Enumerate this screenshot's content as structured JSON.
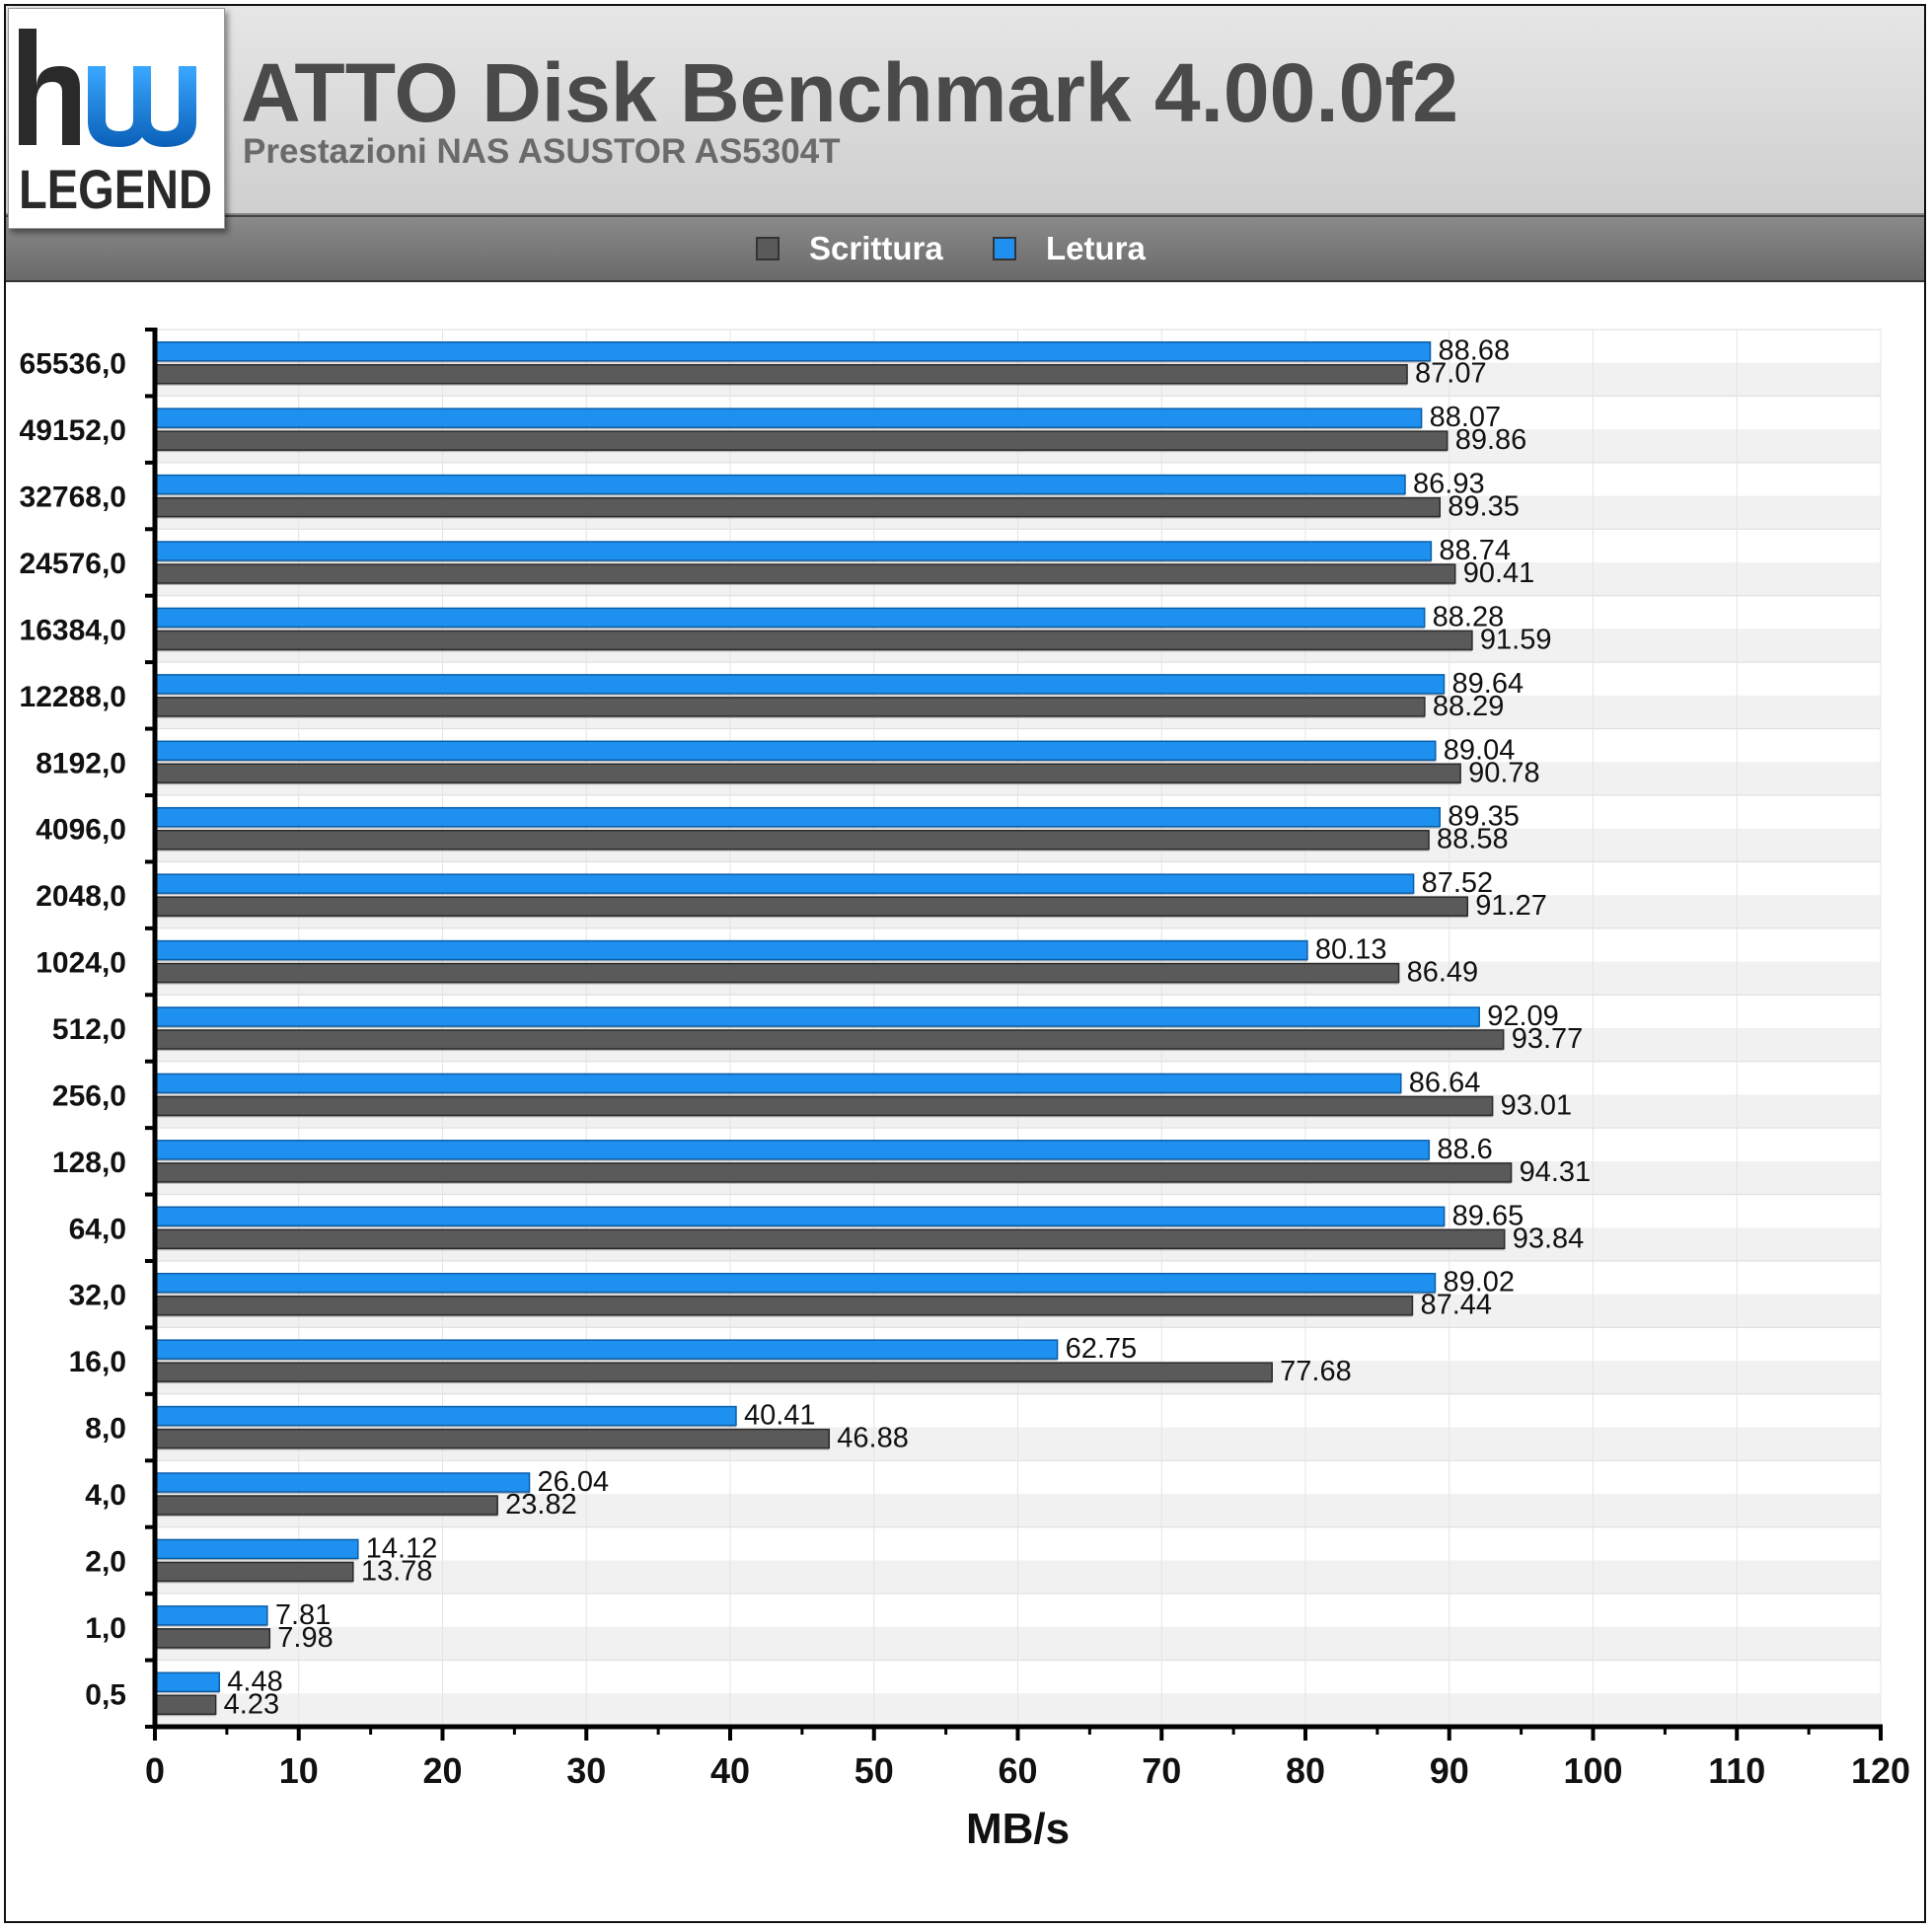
{
  "logo": {
    "brand": "hw",
    "word": "LEGEND"
  },
  "legend": [
    {
      "label": "Scrittura",
      "color": "#5a5a5a"
    },
    {
      "label": "Letura",
      "color": "#1e90f0"
    }
  ],
  "chart_data": {
    "type": "bar",
    "orientation": "horizontal",
    "title": "ATTO Disk Benchmark 4.00.0f2",
    "subtitle": "Prestazioni NAS ASUSTOR AS5304T",
    "xlabel": "MB/s",
    "ylabel": "",
    "xlim": [
      0,
      120
    ],
    "xticks": [
      0,
      10,
      20,
      30,
      40,
      50,
      60,
      70,
      80,
      90,
      100,
      110,
      120
    ],
    "grid": true,
    "legend_position": "top",
    "categories": [
      "65536,0",
      "49152,0",
      "32768,0",
      "24576,0",
      "16384,0",
      "12288,0",
      "8192,0",
      "4096,0",
      "2048,0",
      "1024,0",
      "512,0",
      "256,0",
      "128,0",
      "64,0",
      "32,0",
      "16,0",
      "8,0",
      "4,0",
      "2,0",
      "1,0",
      "0,5"
    ],
    "series": [
      {
        "name": "Letura",
        "color": "#1e90f0",
        "values": [
          88.68,
          88.07,
          86.93,
          88.74,
          88.28,
          89.64,
          89.04,
          89.35,
          87.52,
          80.13,
          92.09,
          86.64,
          88.6,
          89.65,
          89.02,
          62.75,
          40.41,
          26.04,
          14.12,
          7.81,
          4.48
        ]
      },
      {
        "name": "Scrittura",
        "color": "#5a5a5a",
        "values": [
          87.07,
          89.86,
          89.35,
          90.41,
          91.59,
          88.29,
          90.78,
          88.58,
          91.27,
          86.49,
          93.77,
          93.01,
          94.31,
          93.84,
          87.44,
          77.68,
          46.88,
          23.82,
          13.78,
          7.98,
          4.23
        ]
      }
    ]
  }
}
